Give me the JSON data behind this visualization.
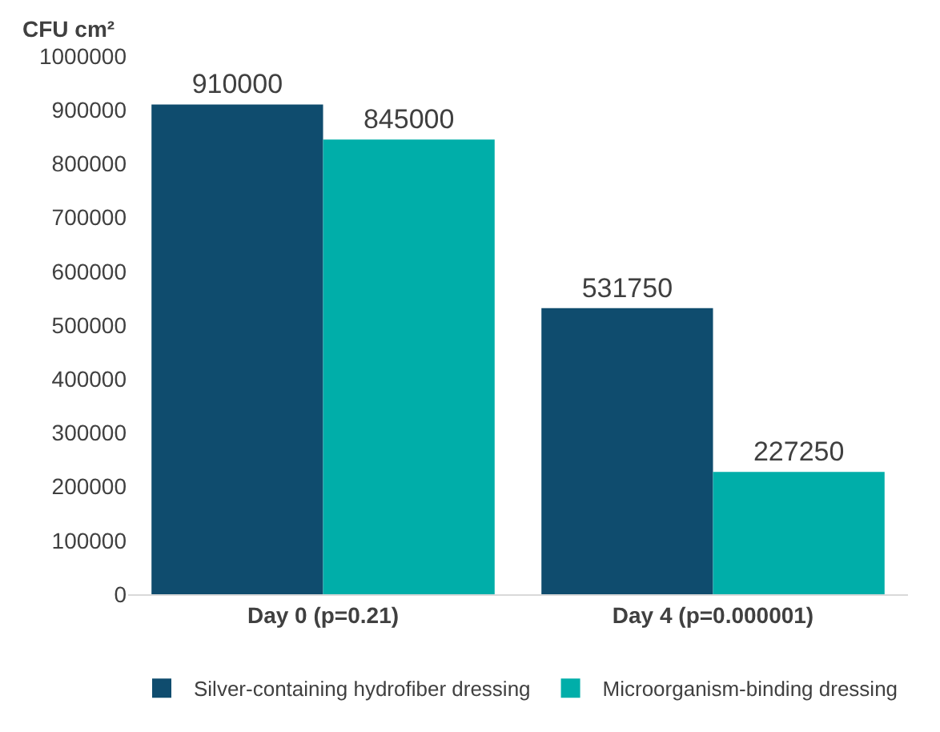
{
  "chart_data": {
    "type": "bar",
    "ylabel": "CFU cm²",
    "categories": [
      "Day 0 (p=0.21)",
      "Day 4 (p=0.000001)"
    ],
    "series": [
      {
        "name": "Silver-containing hydrofiber dressing",
        "color": "#0f4c6e",
        "values": [
          910000,
          531750
        ]
      },
      {
        "name": "Microorganism-binding dressing",
        "color": "#00aea9",
        "values": [
          845000,
          227250
        ]
      }
    ],
    "ylim": [
      0,
      1000000
    ],
    "yticks": [
      0,
      100000,
      200000,
      300000,
      400000,
      500000,
      600000,
      700000,
      800000,
      900000,
      1000000
    ],
    "data_labels": true,
    "grid": false,
    "legend": "bottom"
  }
}
